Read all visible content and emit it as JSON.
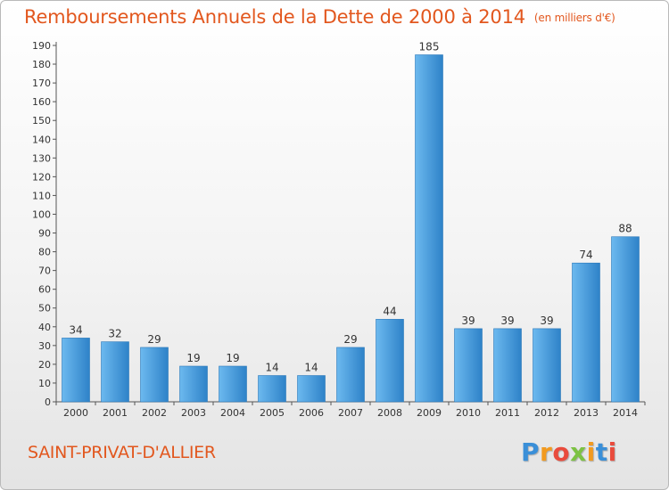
{
  "title": "Remboursements Annuels de la Dette de 2000 à 2014",
  "unit": "(en milliers d'€)",
  "commune": "SAINT-PRIVAT-D'ALLIER",
  "logo": {
    "letters": [
      "P",
      "r",
      "o",
      "x",
      "i",
      "t",
      "i"
    ],
    "colors": [
      "#3a8fd8",
      "#f29a1f",
      "#e94b3c",
      "#7cc242",
      "#f29a1f",
      "#3a8fd8",
      "#e94b3c"
    ]
  },
  "colors": {
    "bar_light": "#6cb9ef",
    "bar_dark": "#2e82c8",
    "accent": "#e2571e"
  },
  "chart_data": {
    "type": "bar",
    "categories": [
      "2000",
      "2001",
      "2002",
      "2003",
      "2004",
      "2005",
      "2006",
      "2007",
      "2008",
      "2009",
      "2010",
      "2011",
      "2012",
      "2013",
      "2014"
    ],
    "values": [
      34,
      32,
      29,
      19,
      19,
      14,
      14,
      29,
      44,
      185,
      39,
      39,
      39,
      74,
      88
    ],
    "ylim": [
      0,
      190
    ],
    "yticks": [
      0,
      10,
      20,
      30,
      40,
      50,
      60,
      70,
      80,
      90,
      100,
      110,
      120,
      130,
      140,
      150,
      160,
      170,
      180,
      190
    ],
    "grid": false
  }
}
